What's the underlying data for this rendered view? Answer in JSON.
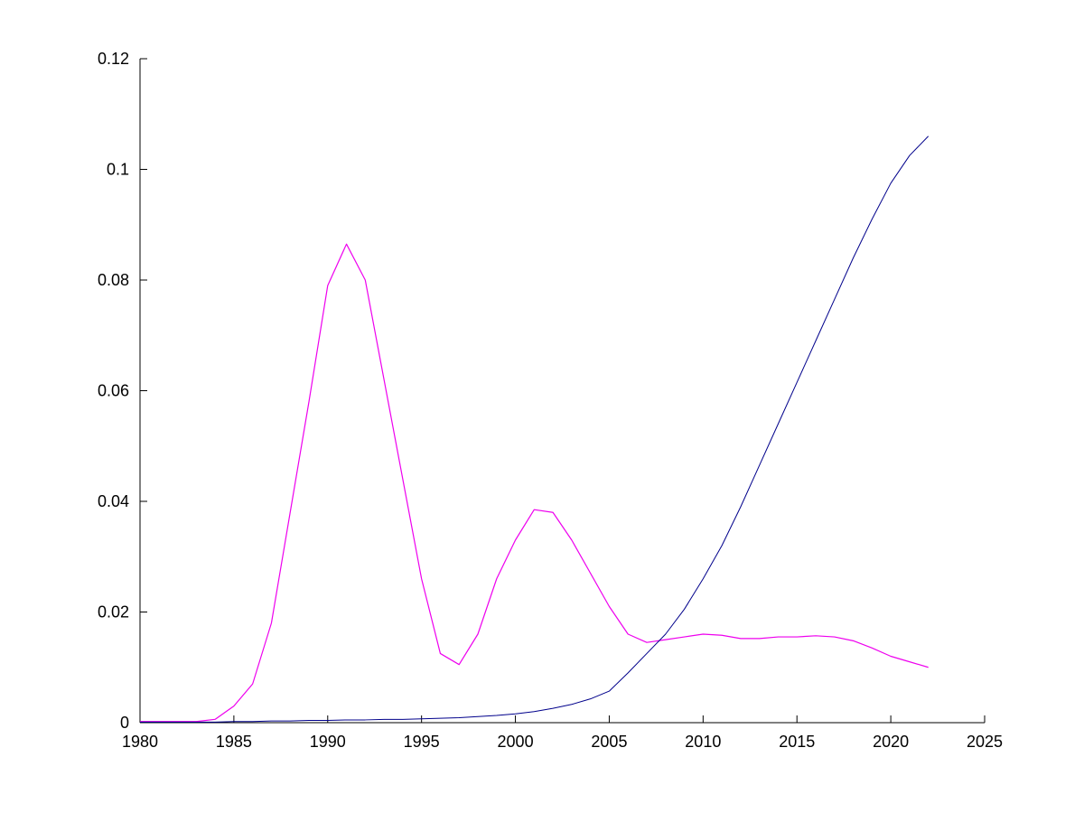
{
  "figure": {
    "background_color": "#ffffff",
    "axis_color": "#000000",
    "tick_label_color": "#000000"
  },
  "chart_data": {
    "type": "line",
    "title": "",
    "xlabel": "",
    "ylabel": "",
    "xlim": [
      1980,
      2025
    ],
    "ylim": [
      0,
      0.12
    ],
    "grid": false,
    "legend": null,
    "xticks": [
      1980,
      1985,
      1990,
      1995,
      2000,
      2005,
      2010,
      2015,
      2020,
      2025
    ],
    "xtick_labels": [
      "1980",
      "1985",
      "1990",
      "1995",
      "2000",
      "2005",
      "2010",
      "2015",
      "2020",
      "2025"
    ],
    "yticks": [
      0,
      0.02,
      0.04,
      0.06,
      0.08,
      0.1,
      0.12
    ],
    "ytick_labels": [
      "0",
      "0.02",
      "0.04",
      "0.06",
      "0.08",
      "0.1",
      "0.12"
    ],
    "x": [
      1980,
      1981,
      1982,
      1983,
      1984,
      1985,
      1986,
      1987,
      1988,
      1989,
      1990,
      1991,
      1992,
      1993,
      1994,
      1995,
      1996,
      1997,
      1998,
      1999,
      2000,
      2001,
      2002,
      2003,
      2004,
      2005,
      2006,
      2007,
      2008,
      2009,
      2010,
      2011,
      2012,
      2013,
      2014,
      2015,
      2016,
      2017,
      2018,
      2019,
      2020,
      2021,
      2022
    ],
    "series": [
      {
        "name": "magenta-series",
        "color": "#ee00ee",
        "stroke_width": 1.2,
        "values": [
          0.0002,
          0.0002,
          0.0002,
          0.0002,
          0.0006,
          0.003,
          0.007,
          0.018,
          0.038,
          0.058,
          0.079,
          0.0865,
          0.08,
          0.062,
          0.044,
          0.026,
          0.0125,
          0.0105,
          0.016,
          0.026,
          0.033,
          0.0385,
          0.038,
          0.033,
          0.027,
          0.021,
          0.016,
          0.0145,
          0.015,
          0.0155,
          0.016,
          0.0158,
          0.0152,
          0.0152,
          0.0155,
          0.0155,
          0.0157,
          0.0155,
          0.0148,
          0.0135,
          0.012,
          0.011,
          0.01
        ]
      },
      {
        "name": "blue-series",
        "color": "#00008b",
        "stroke_width": 1,
        "values": [
          0.0001,
          0.0001,
          0.0001,
          0.0001,
          0.0001,
          0.0002,
          0.0002,
          0.0003,
          0.0003,
          0.0004,
          0.0004,
          0.0005,
          0.0005,
          0.0006,
          0.0006,
          0.0007,
          0.0008,
          0.0009,
          0.0011,
          0.0013,
          0.0016,
          0.002,
          0.0026,
          0.0033,
          0.0043,
          0.0057,
          0.009,
          0.0125,
          0.016,
          0.0205,
          0.026,
          0.032,
          0.039,
          0.0465,
          0.054,
          0.0615,
          0.069,
          0.0765,
          0.084,
          0.091,
          0.0975,
          0.1025,
          0.106
        ]
      }
    ]
  }
}
